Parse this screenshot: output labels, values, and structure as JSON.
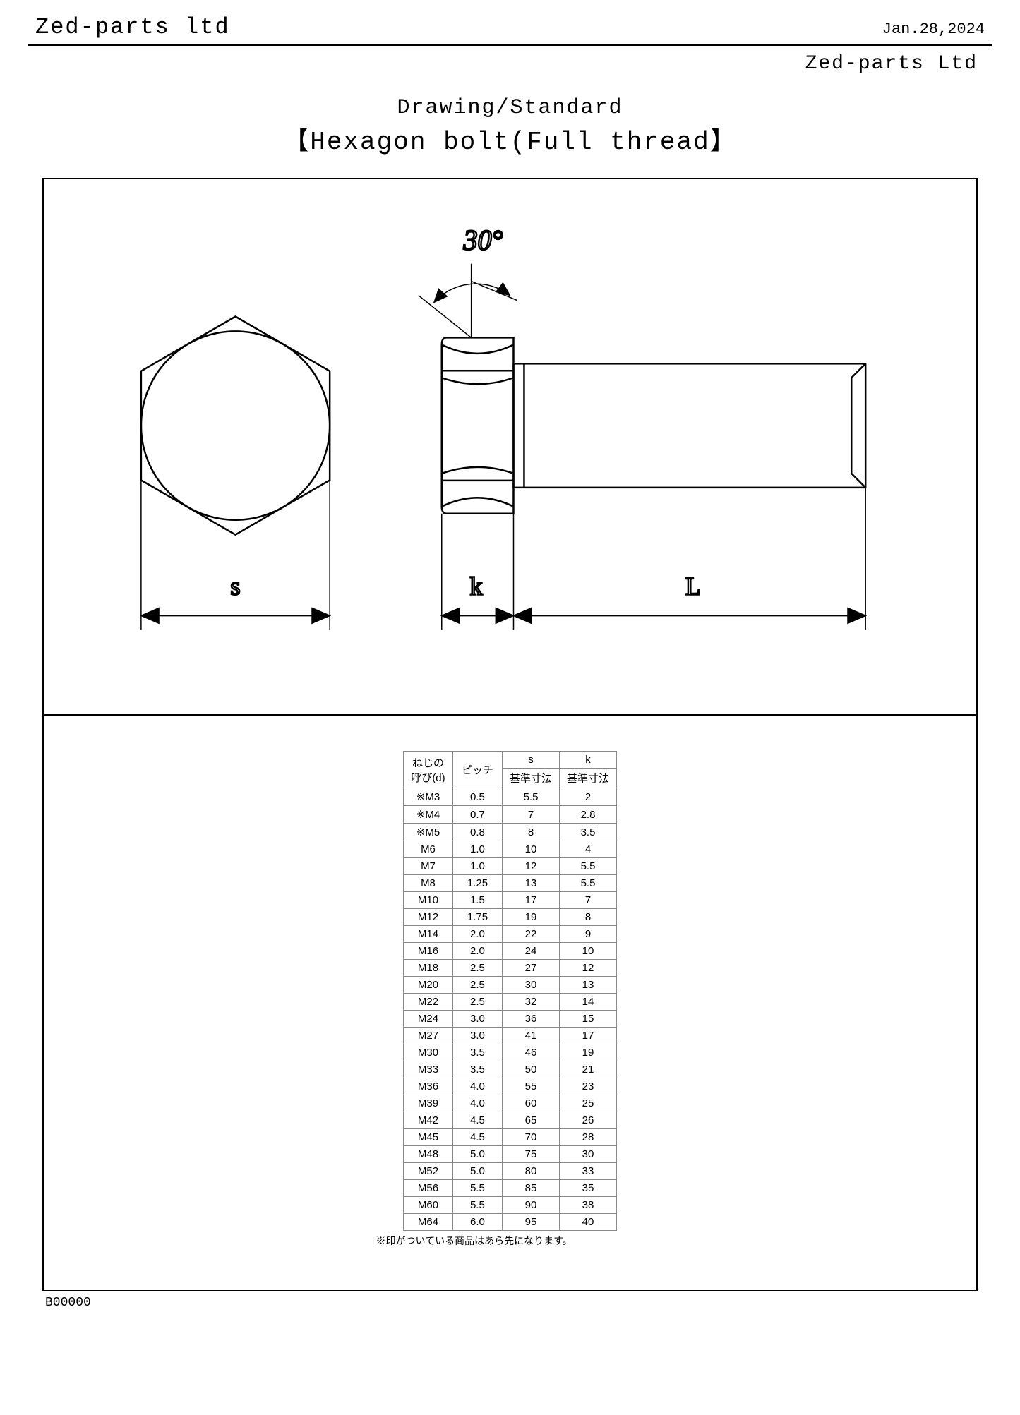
{
  "header": {
    "company_top": "Zed-parts ltd",
    "date": "Jan.28,2024",
    "company_right": "Zed-parts Ltd"
  },
  "title": {
    "line1": "Drawing/Standard",
    "line2": "【Hexagon bolt(Full thread】"
  },
  "drawing": {
    "angle_label": "30°",
    "dim_s": "s",
    "dim_k": "k",
    "dim_L": "L",
    "stroke": "#000000",
    "bg": "#ffffff"
  },
  "table": {
    "header": {
      "col1_line1": "ねじの",
      "col1_line2": "呼び(d)",
      "col2": "ピッチ",
      "col3_top": "s",
      "col3_sub": "基準寸法",
      "col4_top": "k",
      "col4_sub": "基準寸法"
    },
    "rows": [
      [
        "※M3",
        "0.5",
        "5.5",
        "2"
      ],
      [
        "※M4",
        "0.7",
        "7",
        "2.8"
      ],
      [
        "※M5",
        "0.8",
        "8",
        "3.5"
      ],
      [
        "M6",
        "1.0",
        "10",
        "4"
      ],
      [
        "M7",
        "1.0",
        "12",
        "5.5"
      ],
      [
        "M8",
        "1.25",
        "13",
        "5.5"
      ],
      [
        "M10",
        "1.5",
        "17",
        "7"
      ],
      [
        "M12",
        "1.75",
        "19",
        "8"
      ],
      [
        "M14",
        "2.0",
        "22",
        "9"
      ],
      [
        "M16",
        "2.0",
        "24",
        "10"
      ],
      [
        "M18",
        "2.5",
        "27",
        "12"
      ],
      [
        "M20",
        "2.5",
        "30",
        "13"
      ],
      [
        "M22",
        "2.5",
        "32",
        "14"
      ],
      [
        "M24",
        "3.0",
        "36",
        "15"
      ],
      [
        "M27",
        "3.0",
        "41",
        "17"
      ],
      [
        "M30",
        "3.5",
        "46",
        "19"
      ],
      [
        "M33",
        "3.5",
        "50",
        "21"
      ],
      [
        "M36",
        "4.0",
        "55",
        "23"
      ],
      [
        "M39",
        "4.0",
        "60",
        "25"
      ],
      [
        "M42",
        "4.5",
        "65",
        "26"
      ],
      [
        "M45",
        "4.5",
        "70",
        "28"
      ],
      [
        "M48",
        "5.0",
        "75",
        "30"
      ],
      [
        "M52",
        "5.0",
        "80",
        "33"
      ],
      [
        "M56",
        "5.5",
        "85",
        "35"
      ],
      [
        "M60",
        "5.5",
        "90",
        "38"
      ],
      [
        "M64",
        "6.0",
        "95",
        "40"
      ]
    ],
    "footnote": "※印がついている商品はあら先になります。"
  },
  "doc_id": "B00000"
}
